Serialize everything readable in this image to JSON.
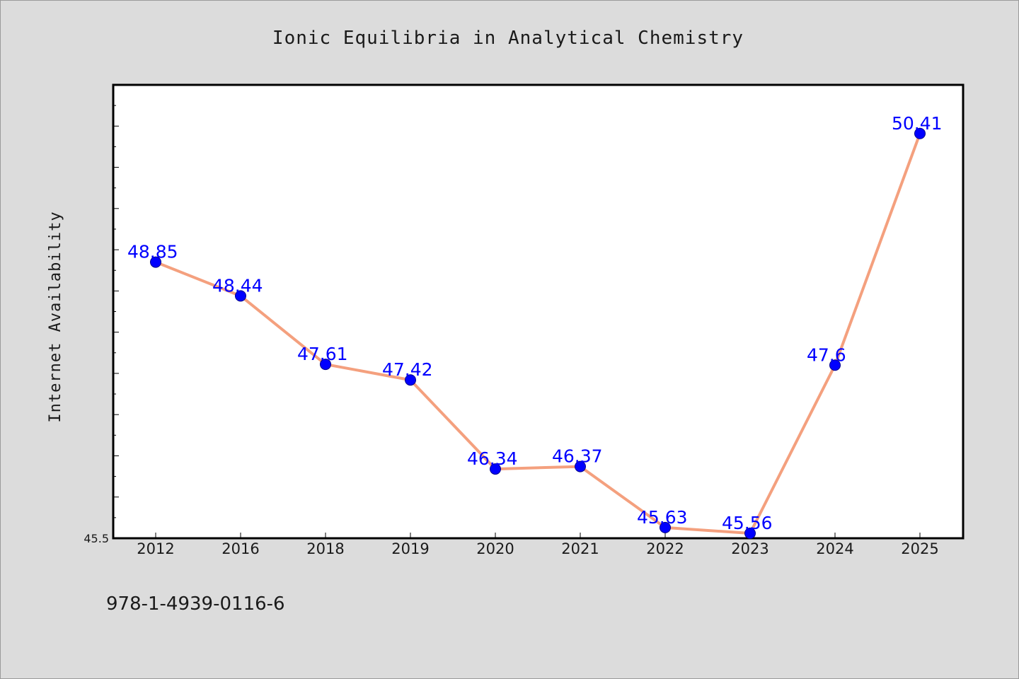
{
  "chart_data": {
    "type": "line",
    "title": "Ionic Equilibria in Analytical Chemistry",
    "xlabel": "",
    "ylabel": "Internet Availability",
    "categories": [
      "2012",
      "2016",
      "2018",
      "2019",
      "2020",
      "2021",
      "2022",
      "2023",
      "2024",
      "2025"
    ],
    "series": [
      {
        "values": [
          48.85,
          48.44,
          47.61,
          47.42,
          46.34,
          46.37,
          45.63,
          45.56,
          47.6,
          50.41
        ],
        "labels": [
          "48.85",
          "48.44",
          "47.61",
          "47.42",
          "46.34",
          "46.37",
          "45.63",
          "45.56",
          "47.6",
          "50.41"
        ]
      }
    ],
    "ylim": [
      45.5,
      51.0
    ],
    "yticks_labeled": [
      "45.5"
    ],
    "line_color": "#f4a07e",
    "marker_color": "#0000ff",
    "label_color": "#0000ff",
    "background": "#dcdcdc",
    "plot_background": "#ffffff",
    "grid": false,
    "legend": "none"
  },
  "footer": {
    "isbn": "978-1-4939-0116-6"
  }
}
